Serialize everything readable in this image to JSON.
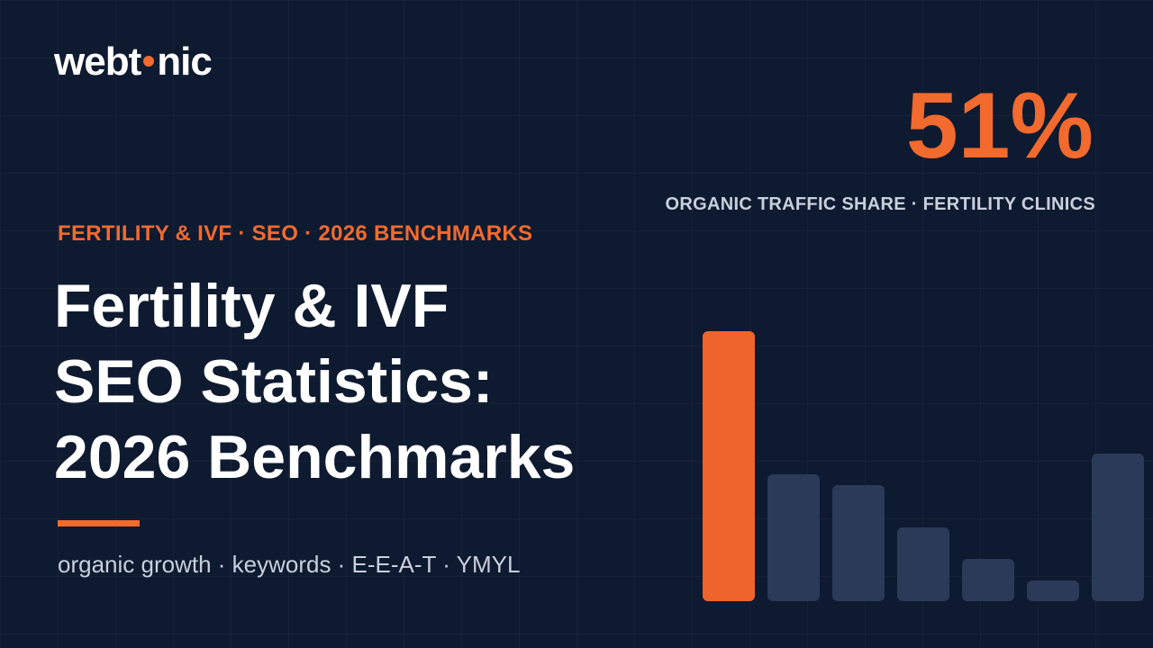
{
  "logo": {
    "before": "webt",
    "after": "nic"
  },
  "stat": {
    "value": "51%",
    "label": "ORGANIC TRAFFIC SHARE · FERTILITY CLINICS"
  },
  "eyebrow": "FERTILITY & IVF · SEO · 2026 BENCHMARKS",
  "title": {
    "lines": [
      "Fertility & IVF",
      "SEO Statistics:",
      "2026 Benchmarks"
    ]
  },
  "tags": "organic growth · keywords · E-E-A-T · YMYL"
}
